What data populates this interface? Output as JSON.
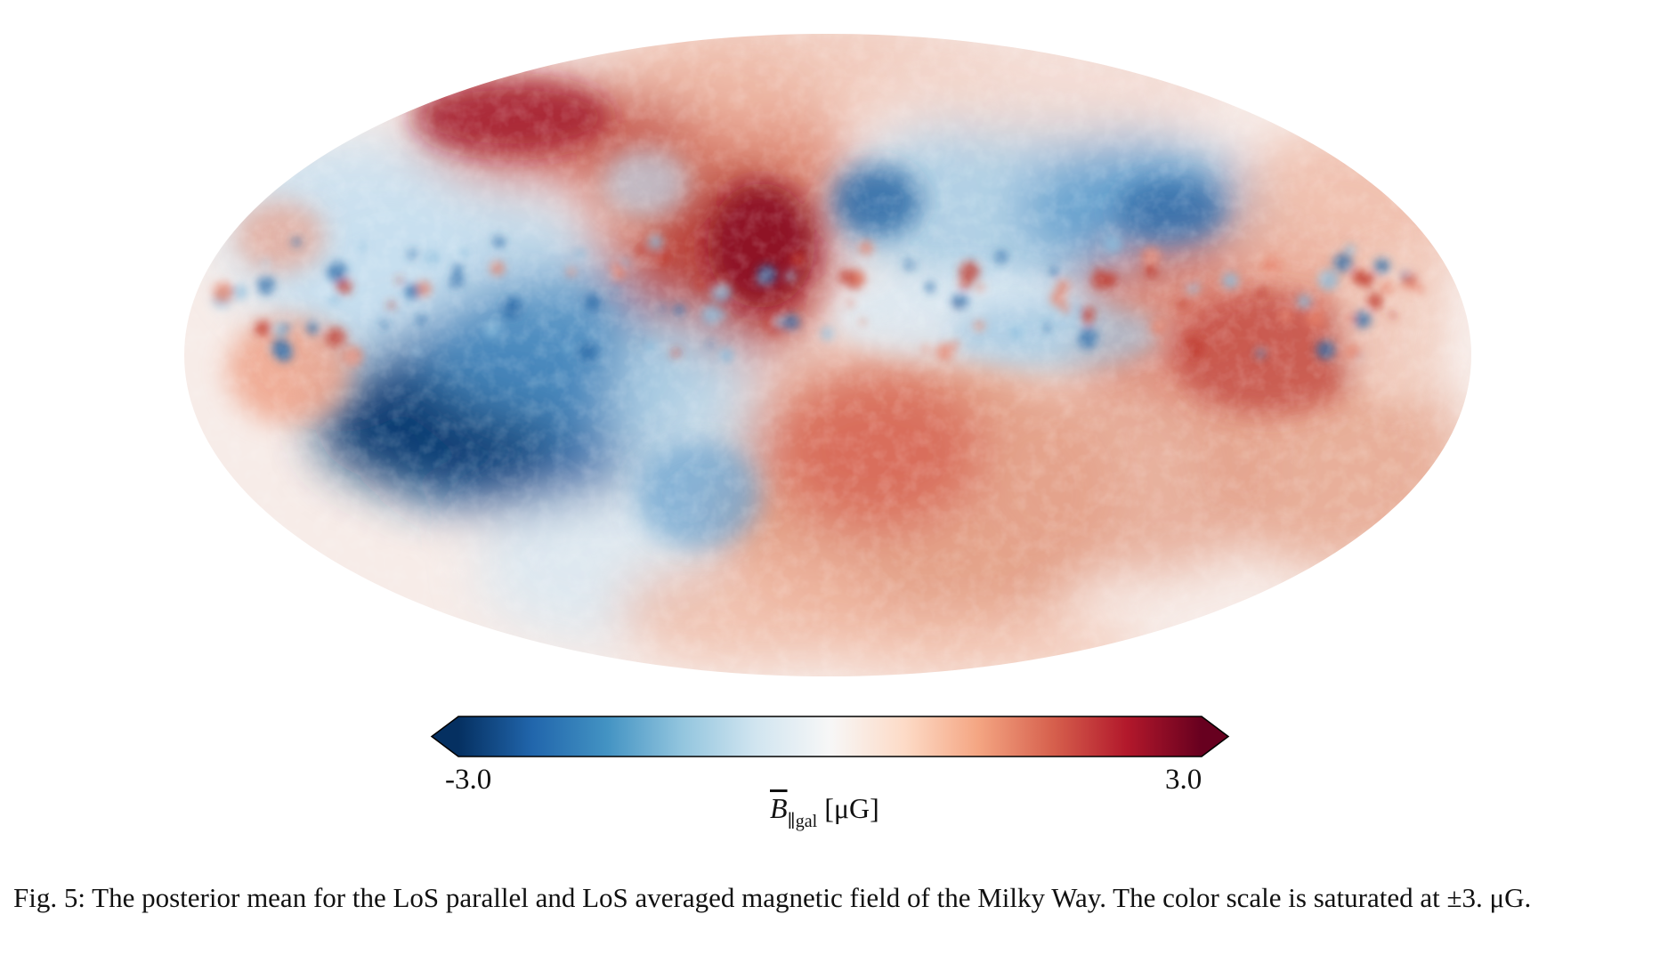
{
  "figure": {
    "map_projection": "Mollweide",
    "colormap": [
      "#053061",
      "#2166ac",
      "#4393c3",
      "#92c5de",
      "#d1e5f0",
      "#f7f7f7",
      "#fddbc7",
      "#f4a582",
      "#d6604d",
      "#b2182b",
      "#67001f"
    ],
    "colorbar": {
      "min_label": "-3.0",
      "max_label": "3.0",
      "quantity_symbol": "B",
      "quantity_subscript": "∥gal",
      "unit": "[μG]",
      "extend": "both"
    },
    "caption": {
      "label": "Fig. 5:",
      "text": "The posterior mean for the LoS parallel and LoS averaged magnetic field of the Milky Way. The color scale is saturated at ±3. μG."
    }
  }
}
